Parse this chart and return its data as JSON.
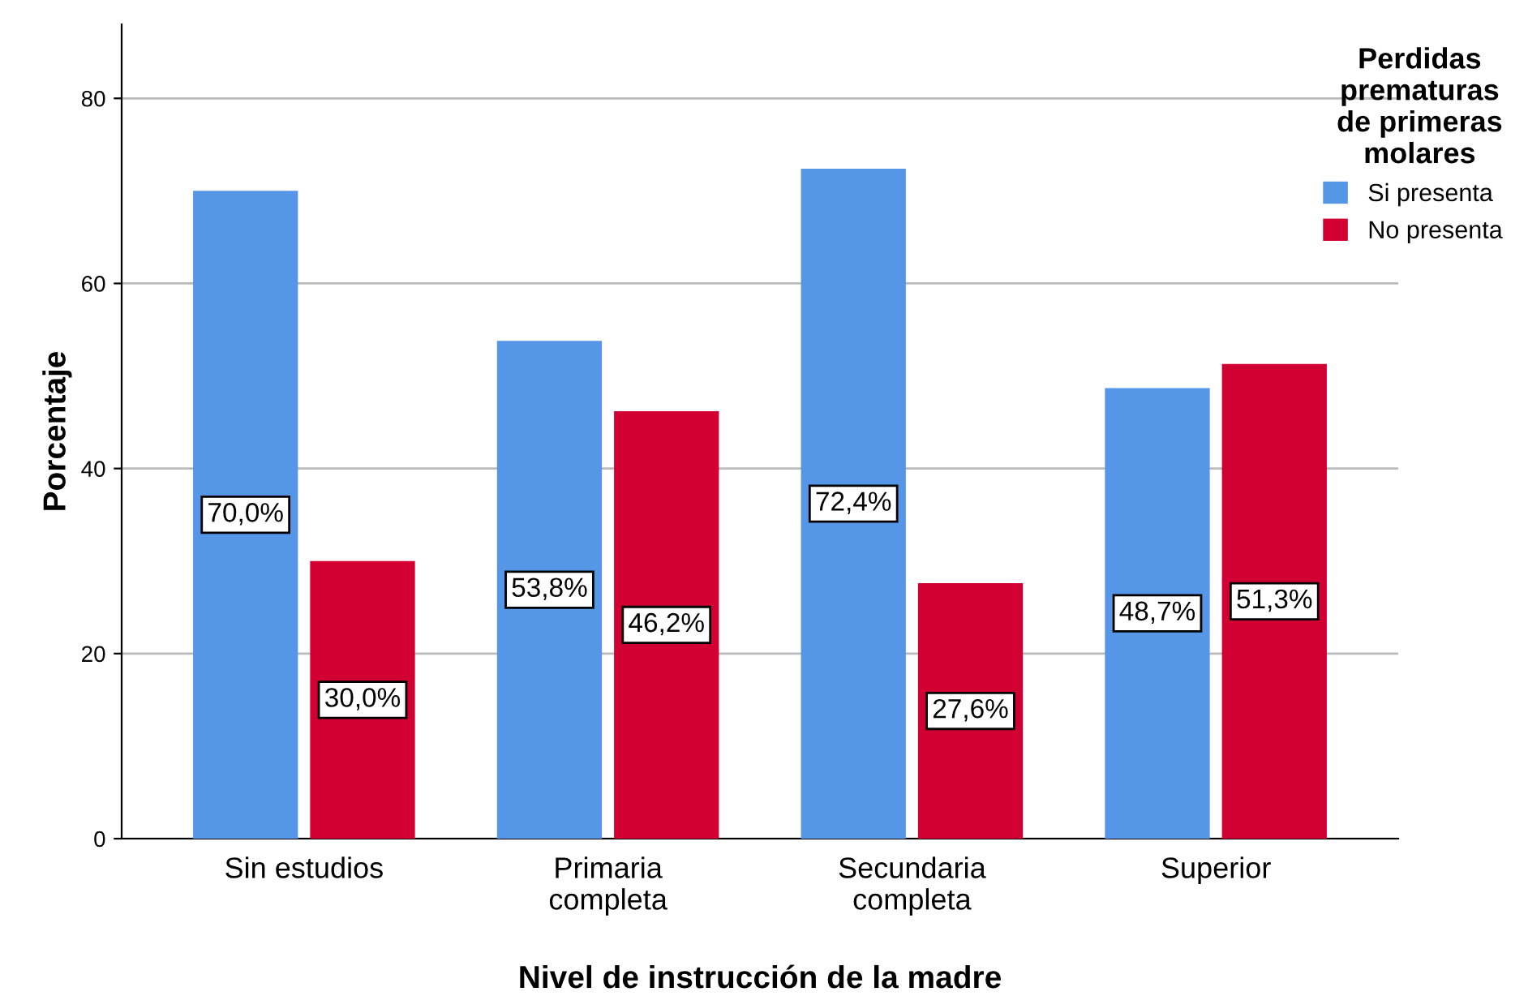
{
  "chart_data": {
    "type": "bar",
    "xlabel": "Nivel de instrucción de la madre",
    "ylabel": "Porcentaje",
    "legend_title": "Perdidas\nprematuras\nde primeras\nmolares",
    "categories": [
      "Sin estudios",
      "Primaria\ncompleta",
      "Secundaria\ncompleta",
      "Superior"
    ],
    "series": [
      {
        "name": "Si presenta",
        "color": "#5596e6",
        "values": [
          70.0,
          53.8,
          72.4,
          48.7
        ],
        "value_labels": [
          "70,0%",
          "53,8%",
          "72,4%",
          "48,7%"
        ]
      },
      {
        "name": "No presenta",
        "color": "#d20032",
        "values": [
          30.0,
          46.2,
          27.6,
          51.3
        ],
        "value_labels": [
          "30,0%",
          "46,2%",
          "27,6%",
          "51,3%"
        ]
      }
    ],
    "ylim": [
      0,
      88
    ],
    "yticks": [
      0,
      20,
      40,
      60,
      80
    ],
    "grid": "y",
    "legend": "top right"
  }
}
